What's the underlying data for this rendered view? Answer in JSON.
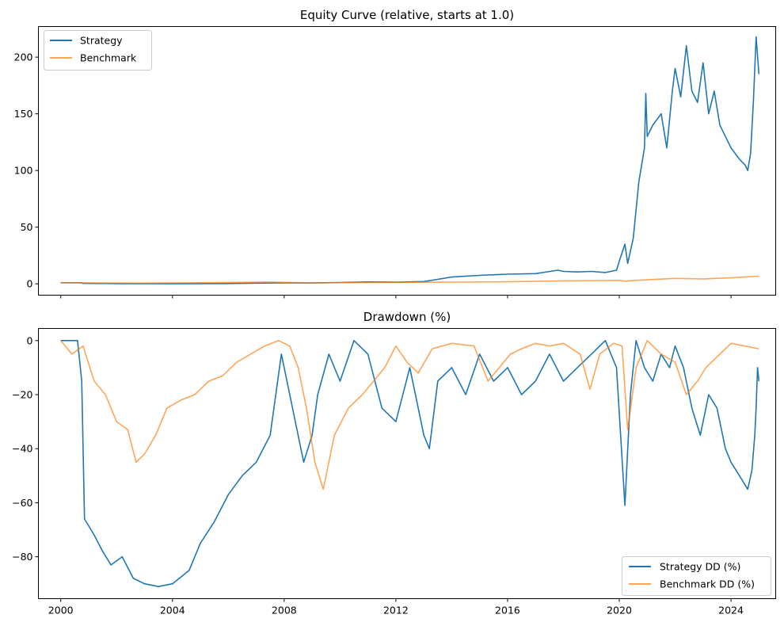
{
  "chart_data": [
    {
      "type": "line",
      "title": "Equity Curve (relative, starts at 1.0)",
      "xlabel": "",
      "ylabel": "",
      "xlim": [
        1999.2,
        2025.6
      ],
      "ylim": [
        -10,
        227
      ],
      "yticks": [
        0,
        50,
        100,
        150,
        200
      ],
      "xticks": [
        2000,
        2004,
        2008,
        2012,
        2016,
        2020,
        2024
      ],
      "grid": false,
      "legend": "top-left",
      "series": [
        {
          "name": "Strategy",
          "color": "#1f77b4",
          "x": [
            2000.0,
            2000.7,
            2000.8,
            2002.0,
            2004.0,
            2006.0,
            2007.0,
            2008.0,
            2009.0,
            2010.0,
            2011.0,
            2012.0,
            2013.0,
            2013.5,
            2014.0,
            2015.0,
            2016.0,
            2017.0,
            2017.8,
            2018.0,
            2018.5,
            2019.0,
            2019.5,
            2019.9,
            2020.0,
            2020.2,
            2020.3,
            2020.5,
            2020.7,
            2020.9,
            2020.95,
            2021.0,
            2021.2,
            2021.5,
            2021.7,
            2021.9,
            2022.0,
            2022.2,
            2022.4,
            2022.6,
            2022.8,
            2023.0,
            2023.2,
            2023.4,
            2023.6,
            2023.8,
            2024.0,
            2024.3,
            2024.5,
            2024.6,
            2024.7,
            2024.8,
            2024.9,
            2025.0
          ],
          "y": [
            1.0,
            1.0,
            0.4,
            0.2,
            0.1,
            0.3,
            0.6,
            0.9,
            0.8,
            1.2,
            1.7,
            1.5,
            2.0,
            4.0,
            6.0,
            7.5,
            8.5,
            9.0,
            12.0,
            11.0,
            10.5,
            11.0,
            10.0,
            12.0,
            20.0,
            35.0,
            18.0,
            40.0,
            90.0,
            120.0,
            168.0,
            130.0,
            140.0,
            150.0,
            120.0,
            170.0,
            190.0,
            165.0,
            210.0,
            170.0,
            160.0,
            195.0,
            150.0,
            170.0,
            140.0,
            130.0,
            120.0,
            110.0,
            105.0,
            100.0,
            115.0,
            160.0,
            218.0,
            185.0
          ]
        },
        {
          "name": "Benchmark",
          "color": "#ff7f0e",
          "x": [
            2000.0,
            2002.7,
            2004.0,
            2007.5,
            2009.0,
            2011.0,
            2013.0,
            2016.0,
            2018.0,
            2020.0,
            2020.2,
            2020.5,
            2022.0,
            2023.0,
            2024.0,
            2025.0
          ],
          "y": [
            1.0,
            0.6,
            0.8,
            1.6,
            0.8,
            1.2,
            1.4,
            1.8,
            2.6,
            3.1,
            2.3,
            3.0,
            4.8,
            4.3,
            5.3,
            6.8
          ]
        }
      ]
    },
    {
      "type": "line",
      "title": "Drawdown (%)",
      "xlabel": "",
      "ylabel": "",
      "xlim": [
        1999.2,
        2025.6
      ],
      "ylim": [
        -95.5,
        4.5
      ],
      "yticks": [
        0,
        -20,
        -40,
        -60,
        -80
      ],
      "xticks": [
        2000,
        2004,
        2008,
        2012,
        2016,
        2020,
        2024
      ],
      "xtick_labels": [
        "2000",
        "2004",
        "2008",
        "2012",
        "2016",
        "2020",
        "2024"
      ],
      "grid": false,
      "legend": "bottom-right",
      "series": [
        {
          "name": "Strategy DD (%)",
          "color": "#1f77b4",
          "x": [
            2000.0,
            2000.6,
            2000.75,
            2000.85,
            2001.2,
            2001.5,
            2001.8,
            2002.2,
            2002.6,
            2003.0,
            2003.5,
            2004.0,
            2004.6,
            2005.0,
            2005.5,
            2006.0,
            2006.5,
            2007.0,
            2007.5,
            2007.9,
            2008.3,
            2008.7,
            2009.0,
            2009.2,
            2009.6,
            2010.0,
            2010.5,
            2011.0,
            2011.5,
            2012.0,
            2012.5,
            2013.0,
            2013.2,
            2013.5,
            2014.0,
            2014.5,
            2015.0,
            2015.5,
            2016.0,
            2016.5,
            2017.0,
            2017.5,
            2018.0,
            2018.5,
            2019.0,
            2019.5,
            2019.9,
            2020.2,
            2020.4,
            2020.6,
            2020.9,
            2021.2,
            2021.5,
            2021.8,
            2022.0,
            2022.3,
            2022.6,
            2022.9,
            2023.2,
            2023.5,
            2023.8,
            2024.0,
            2024.3,
            2024.6,
            2024.75,
            2024.85,
            2024.9,
            2024.95,
            2025.0
          ],
          "y": [
            0,
            0,
            -15,
            -66,
            -72,
            -78,
            -83,
            -80,
            -88,
            -90,
            -91,
            -90,
            -85,
            -75,
            -67,
            -57,
            -50,
            -45,
            -35,
            -5,
            -25,
            -45,
            -35,
            -20,
            -5,
            -15,
            0,
            -5,
            -25,
            -30,
            -10,
            -35,
            -40,
            -15,
            -10,
            -20,
            -5,
            -15,
            -10,
            -20,
            -15,
            -5,
            -15,
            -10,
            -5,
            0,
            -10,
            -61,
            -20,
            0,
            -10,
            -15,
            -5,
            -10,
            -2,
            -10,
            -25,
            -35,
            -20,
            -25,
            -40,
            -45,
            -50,
            -55,
            -48,
            -35,
            -25,
            -10,
            -15
          ]
        },
        {
          "name": "Benchmark DD (%)",
          "color": "#ff7f0e",
          "x": [
            2000.0,
            2000.4,
            2000.8,
            2001.2,
            2001.6,
            2002.0,
            2002.4,
            2002.7,
            2003.0,
            2003.4,
            2003.8,
            2004.3,
            2004.8,
            2005.3,
            2005.8,
            2006.3,
            2006.8,
            2007.3,
            2007.8,
            2008.2,
            2008.5,
            2008.8,
            2009.1,
            2009.4,
            2009.8,
            2010.3,
            2010.8,
            2011.2,
            2011.6,
            2012.0,
            2012.4,
            2012.8,
            2013.3,
            2014.0,
            2014.8,
            2015.3,
            2015.7,
            2016.1,
            2016.5,
            2017.0,
            2017.5,
            2018.0,
            2018.6,
            2018.95,
            2019.3,
            2019.8,
            2020.1,
            2020.3,
            2020.6,
            2021.0,
            2021.5,
            2022.0,
            2022.4,
            2022.8,
            2023.1,
            2023.6,
            2024.0,
            2024.5,
            2025.0
          ],
          "y": [
            0,
            -5,
            -2,
            -15,
            -20,
            -30,
            -33,
            -45,
            -42,
            -35,
            -25,
            -22,
            -20,
            -15,
            -13,
            -8,
            -5,
            -2,
            0,
            -2,
            -10,
            -25,
            -45,
            -55,
            -35,
            -25,
            -20,
            -15,
            -10,
            -2,
            -8,
            -12,
            -3,
            -1,
            -2,
            -15,
            -10,
            -5,
            -3,
            -1,
            -2,
            -1,
            -5,
            -18,
            -5,
            -1,
            -2,
            -33,
            -10,
            0,
            -5,
            -8,
            -20,
            -15,
            -10,
            -5,
            -1,
            -2,
            -3
          ]
        }
      ]
    }
  ]
}
